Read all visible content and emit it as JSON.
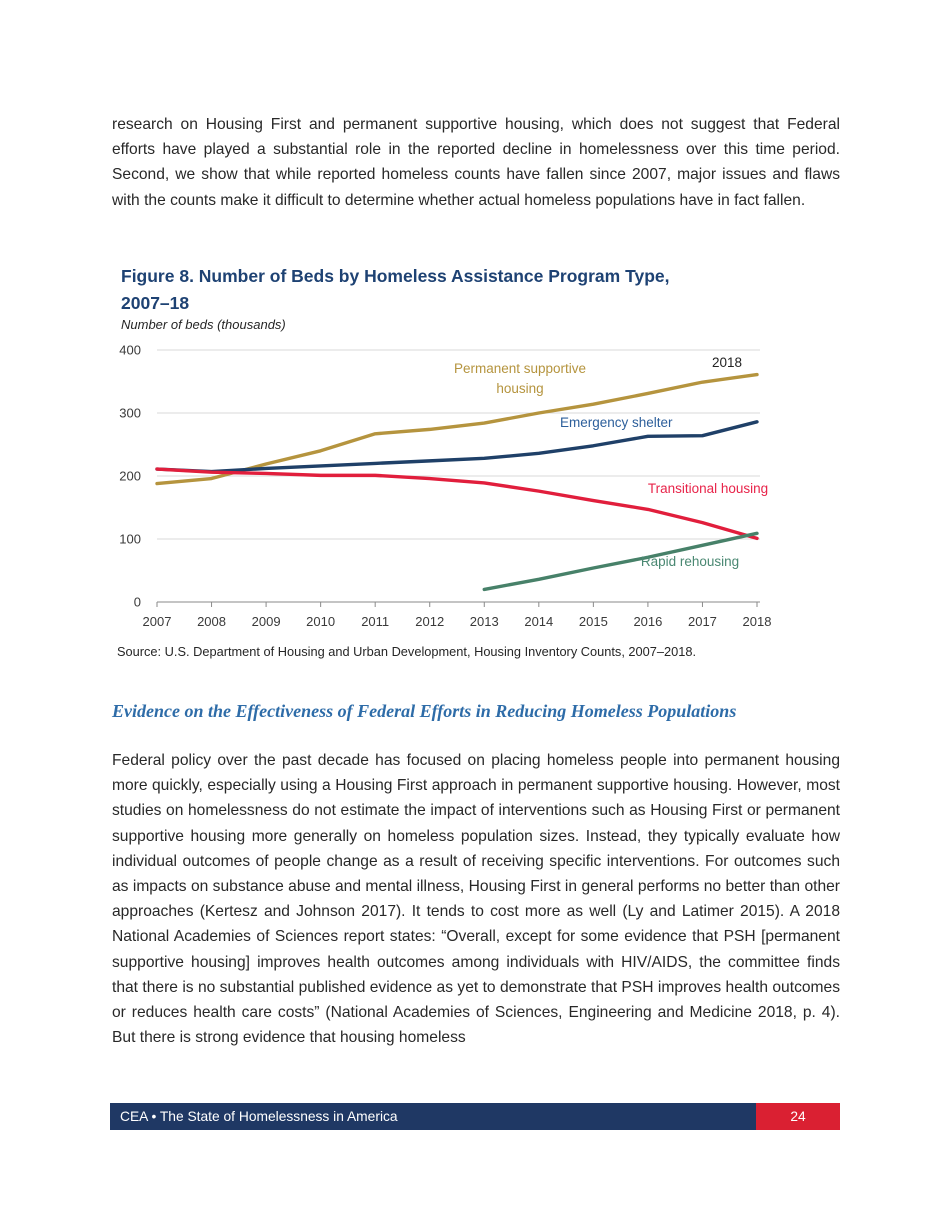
{
  "theme": {
    "title_navy": "#1e4273",
    "heading_blue": "#2e6ca8",
    "footer_navy": "#1f3864",
    "page_red": "#da2032",
    "text": "#282828"
  },
  "page": {
    "paragraph_top": "research on Housing First and permanent supportive housing, which does not suggest that Federal efforts have played a substantial role in the reported decline in homelessness over this time period. Second, we show that while reported homeless counts have fallen since 2007, major issues and flaws with the counts make it difficult to determine whether actual homeless populations have in fact fallen.",
    "section_heading": "Evidence on the Effectiveness of Federal Efforts in Reducing Homeless Populations",
    "paragraph_body": "Federal policy over the past decade has focused on placing homeless people into permanent housing more quickly, especially using a Housing First approach in permanent supportive housing. However, most studies on homelessness do not estimate the impact of interventions such as Housing First or permanent supportive housing more generally on homeless population sizes. Instead, they typically evaluate how individual outcomes of people change as a result of receiving specific interventions. For outcomes such as impacts on substance abuse and mental illness, Housing First in general performs no better than other approaches (Kertesz and Johnson 2017). It tends to cost more as well (Ly and Latimer 2015). A 2018 National Academies of Sciences report states: “Overall, except for some evidence that PSH [permanent supportive housing] improves health outcomes among individuals with HIV/AIDS, the committee finds that there is no substantial published evidence as yet to demonstrate that PSH improves health outcomes or reduces health care costs” (National Academies of Sciences, Engineering and Medicine 2018, p. 4). But there is strong evidence that housing homeless",
    "footer": {
      "label": "CEA • The State of Homelessness in America",
      "page_number": "24"
    }
  },
  "figure": {
    "title_line1": "Figure 8. Number of Beds by Homeless Assistance Program Type,",
    "title_line2": "2007–18",
    "axis_title": "Number of beds (thousands)",
    "source": "Source: U.S. Department of Housing and Urban Development, Housing Inventory Counts, 2007–2018."
  },
  "chart_data": {
    "type": "line",
    "title": "Figure 8. Number of Beds by Homeless Assistance Program Type, 2007–18",
    "ylabel": "Number of beds (thousands)",
    "x": [
      2007,
      2008,
      2009,
      2010,
      2011,
      2012,
      2013,
      2014,
      2015,
      2016,
      2017,
      2018
    ],
    "ylim": [
      0,
      400
    ],
    "yticks": [
      0,
      100,
      200,
      300,
      400
    ],
    "grid": true,
    "grid_color": "#d9d9d9",
    "axis_color": "#8a8a8a",
    "legend_position": "inline-annotations",
    "series": [
      {
        "name": "Permanent supportive housing",
        "color": "#b5943e",
        "label_color": "#b5943e",
        "values": [
          188,
          196,
          219,
          240,
          267,
          274,
          284,
          300,
          314,
          331,
          349,
          361
        ]
      },
      {
        "name": "Emergency shelter",
        "color": "#1f4068",
        "label_color": "#2d5f9b",
        "values": [
          211,
          207,
          212,
          216,
          220,
          224,
          228,
          236,
          248,
          263,
          264,
          286
        ]
      },
      {
        "name": "Transitional housing",
        "color": "#e11e3c",
        "label_color": "#e8244a",
        "values": [
          211,
          206,
          204,
          201,
          201,
          196,
          189,
          176,
          161,
          147,
          126,
          101
        ]
      },
      {
        "name": "Rapid rehousing",
        "color": "#478169",
        "label_color": "#4a8872",
        "values": [
          null,
          null,
          null,
          null,
          null,
          null,
          20,
          36,
          54,
          71,
          90,
          109
        ]
      }
    ],
    "annotations": [
      {
        "text": "2018"
      }
    ]
  }
}
